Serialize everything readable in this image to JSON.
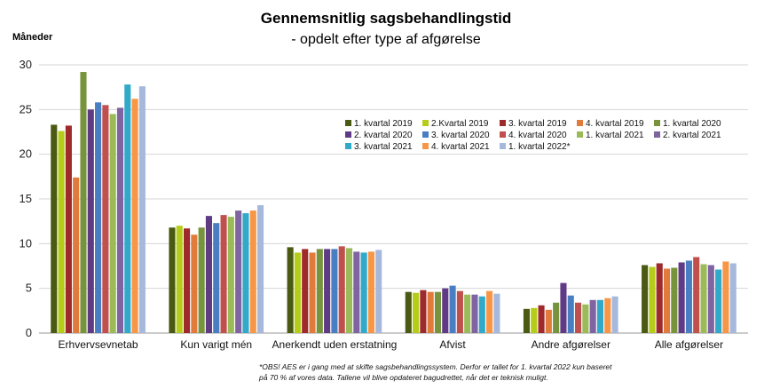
{
  "chart_data": {
    "type": "bar",
    "title": "Gennemsnitlig sagsbehandlingstid",
    "subtitle": "- opdelt efter type af afgørelse",
    "ylabel": "Måneder",
    "xlabel": "",
    "ylim": [
      0,
      30
    ],
    "yticks": [
      0,
      5,
      10,
      15,
      20,
      25,
      30
    ],
    "grid": true,
    "legend_position": "right",
    "categories": [
      "Erhvervsevnetab",
      "Kun varigt mén",
      "Anerkendt uden erstatning",
      "Afvist",
      "Andre afgørelser",
      "Alle afgørelser"
    ],
    "series": [
      {
        "name": "1. kvartal 2019",
        "color": "#4a5a12",
        "values": [
          23.3,
          11.8,
          9.6,
          4.6,
          2.7,
          7.6
        ]
      },
      {
        "name": "2.Kvartal 2019",
        "color": "#b5cc18",
        "values": [
          22.6,
          12.0,
          9.0,
          4.5,
          2.8,
          7.4
        ]
      },
      {
        "name": "3. kvartal 2019",
        "color": "#9e2a2b",
        "values": [
          23.2,
          11.7,
          9.4,
          4.8,
          3.1,
          7.8
        ]
      },
      {
        "name": "4. kvartal 2019",
        "color": "#e07b3c",
        "values": [
          17.4,
          11.0,
          9.0,
          4.6,
          2.6,
          7.2
        ]
      },
      {
        "name": "1. kvartal 2020",
        "color": "#77933c",
        "values": [
          29.2,
          11.8,
          9.4,
          4.6,
          3.4,
          7.3
        ]
      },
      {
        "name": "2. kvartal 2020",
        "color": "#5f3b86",
        "values": [
          25.0,
          13.1,
          9.4,
          5.0,
          5.6,
          7.9
        ]
      },
      {
        "name": "3. kvartal 2020",
        "color": "#4a7ec2",
        "values": [
          25.8,
          12.3,
          9.4,
          5.3,
          4.2,
          8.1
        ]
      },
      {
        "name": "4. kvartal 2020",
        "color": "#c0504d",
        "values": [
          25.5,
          13.2,
          9.7,
          4.7,
          3.4,
          8.5
        ]
      },
      {
        "name": "1. kvartal 2021",
        "color": "#9bbb59",
        "values": [
          24.5,
          13.0,
          9.5,
          4.3,
          3.2,
          7.7
        ]
      },
      {
        "name": "2. kvartal 2021",
        "color": "#8064a2",
        "values": [
          25.2,
          13.7,
          9.1,
          4.3,
          3.7,
          7.6
        ]
      },
      {
        "name": "3. kvartal 2021",
        "color": "#31a9c9",
        "values": [
          27.8,
          13.4,
          9.0,
          4.1,
          3.7,
          7.1
        ]
      },
      {
        "name": "4. kvartal 2021",
        "color": "#f79646",
        "values": [
          26.2,
          13.7,
          9.1,
          4.7,
          3.9,
          8.0
        ]
      },
      {
        "name": "1. kvartal 2022*",
        "color": "#a6b9dc",
        "values": [
          27.6,
          14.3,
          9.3,
          4.4,
          4.1,
          7.8
        ]
      }
    ],
    "footnote_lines": [
      "*OBS! AES er i gang med at skifte sagsbehandlingssystem. Derfor er tallet for 1. kvartal 2022 kun baseret",
      "på 70 % af vores data. Tallene vil blive opdateret bagudrettet, når det er teknisk muligt."
    ]
  }
}
